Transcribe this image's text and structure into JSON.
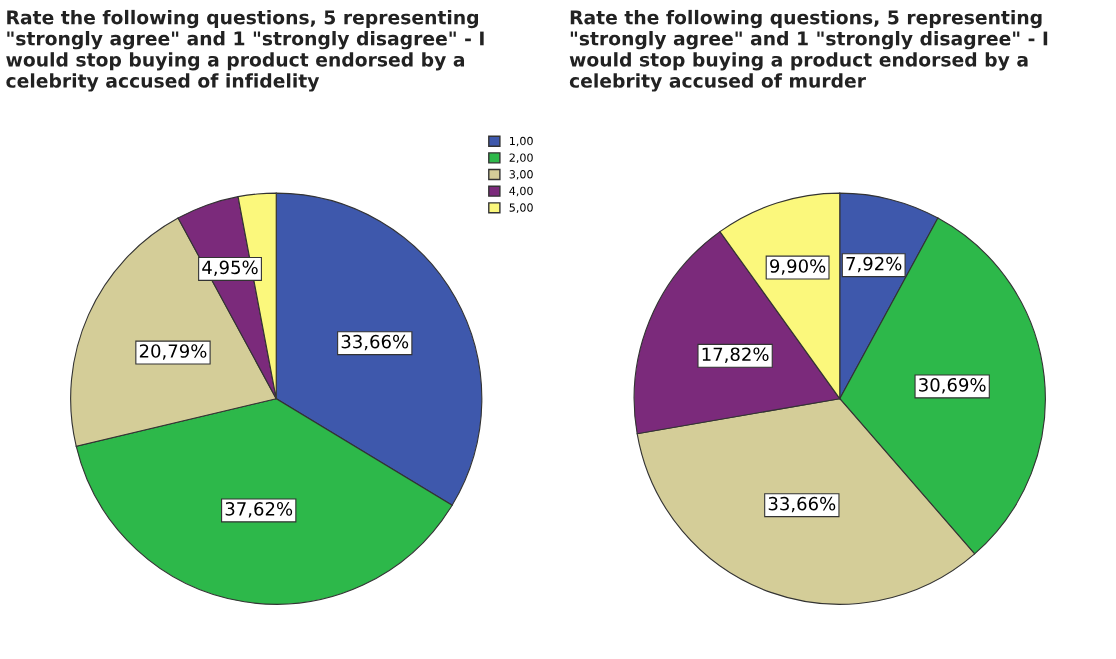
{
  "chart_data": [
    {
      "type": "pie",
      "title": "Rate the following questions, 5 representing \"strongly agree\" and 1 \"strongly disagree\" - I would stop buying a product endorsed by a celebrity accused of infidelity",
      "categories": [
        "1,00",
        "2,00",
        "3,00",
        "4,00",
        "5,00"
      ],
      "values": [
        33.66,
        37.62,
        20.79,
        4.95,
        2.97
      ],
      "value_labels": [
        "33,66%",
        "37,62%",
        "20,79%",
        "4,95%",
        null
      ],
      "colors": [
        "#3e58ac",
        "#2db84a",
        "#d4cd98",
        "#7b2a7b",
        "#fbf87c"
      ],
      "legend": "top right"
    },
    {
      "type": "pie",
      "title": "Rate the following questions, 5 representing \"strongly agree\" and 1 \"strongly disagree\" - I would stop buying a product endorsed by a celebrity accused of murder",
      "categories": [
        null,
        null,
        null,
        null,
        null
      ],
      "values": [
        7.92,
        30.69,
        33.66,
        17.82,
        9.9
      ],
      "value_labels": [
        "7,92%",
        "30,69%",
        "33,66%",
        "17,82%",
        "9,90%"
      ],
      "colors": [
        "#3e58ac",
        "#2db84a",
        "#d4cd98",
        "#7b2a7b",
        "#fbf87c"
      ]
    }
  ]
}
